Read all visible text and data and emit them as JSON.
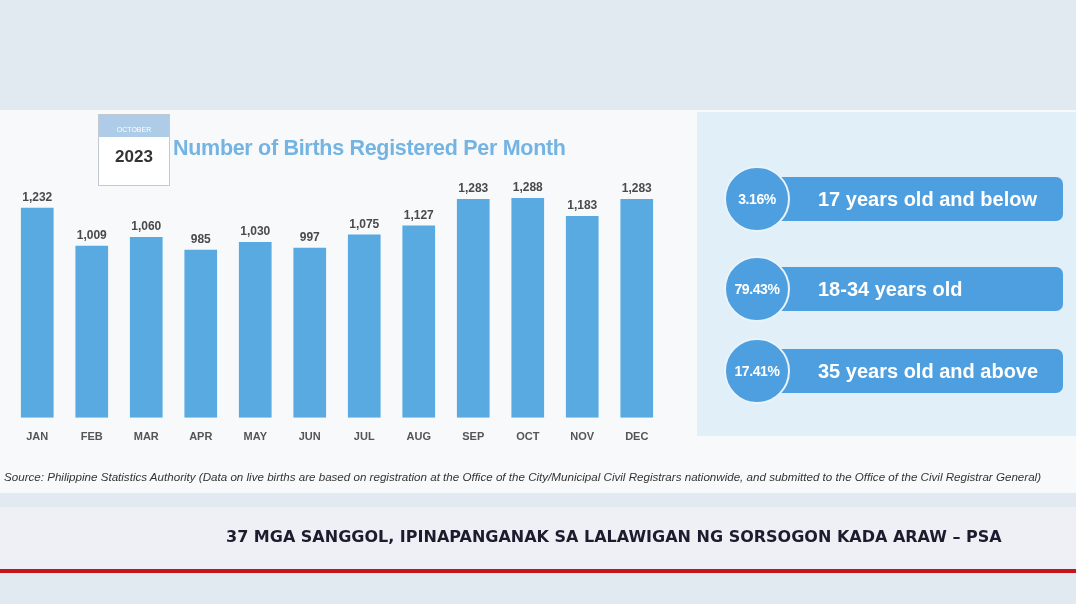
{
  "chart_data": [
    {
      "type": "bar",
      "title": "Number of Births Registered Per Month",
      "subtitle": "2023",
      "categories": [
        "JAN",
        "FEB",
        "MAR",
        "APR",
        "MAY",
        "JUN",
        "JUL",
        "AUG",
        "SEP",
        "OCT",
        "NOV",
        "DEC"
      ],
      "values": [
        1232,
        1009,
        1060,
        985,
        1030,
        997,
        1075,
        1127,
        1283,
        1288,
        1183,
        1283
      ],
      "value_labels": [
        "1,232",
        "1,009",
        "1,060",
        "985",
        "1,030",
        "997",
        "1,075",
        "1,127",
        "1,283",
        "1,288",
        "1,183",
        "1,283"
      ],
      "color": "#5aaae2",
      "annotations": [
        "OCTOBER",
        "Source: Philippine Statistics Authority (Data on live births are based on registration at the Office of the City/Municipal Civil Registrars nationwide, and submitted to the Office of the Civil Registrar General)",
        "37 MGA SANGGOL, IPINAPANGANAK SA LALAWIGAN NG SORSOGON KADA ARAW – PSA"
      ]
    },
    {
      "type": "other",
      "color": "#4e9fe0",
      "annotations": [
        "3.16%",
        "17 years old and below",
        "79.43%",
        "18-34 years old",
        "17.41%",
        "35 years old and above"
      ]
    }
  ]
}
